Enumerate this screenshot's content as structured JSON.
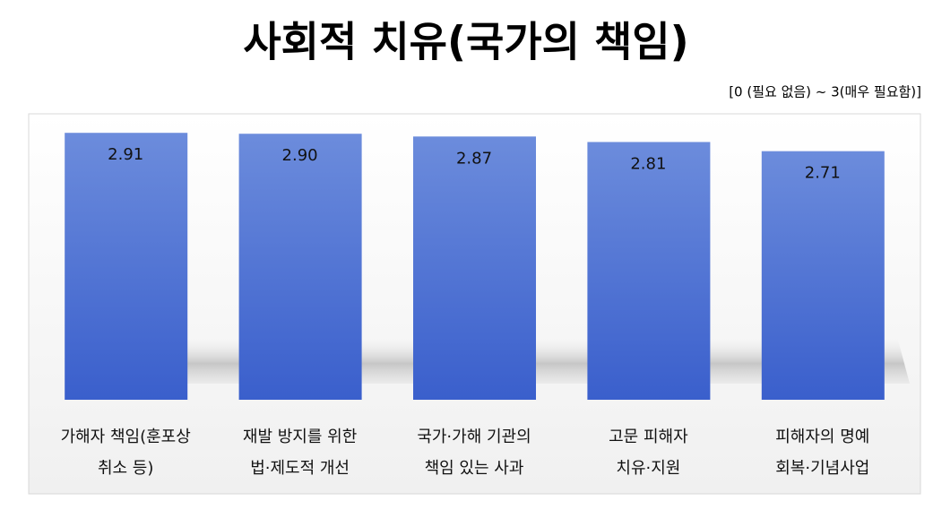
{
  "chart_data": {
    "type": "bar",
    "title": "사회적 치유(국가의 책임)",
    "subtitle": "[0 (필요 없음) ~  3(매우 필요함)]",
    "categories": [
      "가해자 책임(훈포상\n취소 등)",
      "재발 방지를 위한\n법·제도적 개선",
      "국가·가해 기관의\n책임 있는 사과",
      "고문 피해자\n치유·지원",
      "피해자의 명예\n회복·기념사업"
    ],
    "values": [
      2.91,
      2.9,
      2.87,
      2.81,
      2.71
    ],
    "value_labels": [
      "2.91",
      "2.90",
      "2.87",
      "2.81",
      "2.71"
    ],
    "color": "#4a6fd4",
    "ylim": [
      0,
      3
    ]
  }
}
